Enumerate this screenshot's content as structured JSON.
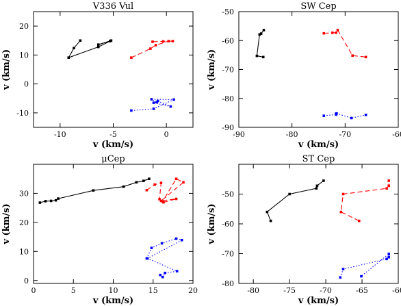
{
  "chart_data": [
    {
      "type": "scatter",
      "title": "V336 Vul",
      "xlabel": "v (km/s)",
      "ylabel": "v (km/s)",
      "xlim": [
        -12.5,
        2.5
      ],
      "ylim": [
        -15,
        25
      ],
      "xticks": [
        -10,
        -5,
        0
      ],
      "yticks": [
        -10,
        0,
        10,
        20
      ],
      "grid": false,
      "series": [
        {
          "color": "#000000",
          "dash": "solid",
          "x": [
            -8.1,
            -8.7,
            -9.2,
            -6.4,
            -5.3,
            -5.2,
            -6.4
          ],
          "y": [
            15.0,
            12.4,
            9.1,
            12.8,
            14.8,
            15.0,
            13.6
          ]
        },
        {
          "color": "#ff0000",
          "dash": "dashed",
          "x": [
            -3.3,
            -1.5,
            -1.0,
            0.2,
            0.6,
            -0.3,
            -1.3
          ],
          "y": [
            9.1,
            12.2,
            13.4,
            14.8,
            14.8,
            14.7,
            14.6
          ]
        },
        {
          "color": "#0000ff",
          "dash": "dotted",
          "x": [
            -3.3,
            -1.2,
            0.7,
            -1.4,
            -0.9,
            -1.2,
            0.4,
            -0.8
          ],
          "y": [
            -9.2,
            -8.6,
            -5.4,
            -5.3,
            -6.3,
            -6.5,
            -7.8,
            -5.9
          ]
        }
      ]
    },
    {
      "type": "scatter",
      "title": "SW Cep",
      "xlabel": "v (km/s)",
      "ylabel": "v (km/s)",
      "xlim": [
        -90,
        -60
      ],
      "ylim": [
        -90,
        -50
      ],
      "xticks": [
        -90,
        -80,
        -70,
        -60
      ],
      "yticks": [
        -90,
        -80,
        -70,
        -60,
        -50
      ],
      "grid": false,
      "series": [
        {
          "color": "#000000",
          "dash": "solid",
          "x": [
            -85.3,
            -85.8,
            -86.1,
            -86.6,
            -85.4
          ],
          "y": [
            -56.4,
            -57.6,
            -57.9,
            -65.3,
            -65.7
          ]
        },
        {
          "color": "#ff0000",
          "dash": "dashed",
          "x": [
            -74.0,
            -72.4,
            -71.7,
            -71.4,
            -68.6,
            -66.1
          ],
          "y": [
            -57.5,
            -57.3,
            -57.3,
            -56.4,
            -65.2,
            -65.7
          ]
        },
        {
          "color": "#0000ff",
          "dash": "dotted",
          "x": [
            -74.0,
            -71.7,
            -71.7,
            -71.6,
            -68.8,
            -66.1
          ],
          "y": [
            -86.0,
            -85.6,
            -85.3,
            -85.2,
            -86.8,
            -85.7
          ]
        }
      ]
    },
    {
      "type": "scatter",
      "title": "μCep",
      "xlabel": "v (km/s)",
      "ylabel": "v (km/s)",
      "xlim": [
        0,
        20
      ],
      "ylim": [
        -1,
        40
      ],
      "xticks": [
        0,
        5,
        10,
        15,
        20
      ],
      "yticks": [
        0,
        10,
        20,
        30
      ],
      "grid": false,
      "series": [
        {
          "color": "#000000",
          "dash": "solid",
          "x": [
            0.8,
            1.5,
            2.2,
            2.8,
            3.1,
            7.5,
            11.3,
            12.9,
            13.8,
            14.5
          ],
          "y": [
            26.8,
            27.3,
            27.4,
            27.6,
            28.2,
            31.0,
            32.3,
            33.8,
            34.3,
            35.0
          ]
        },
        {
          "color": "#ff0000",
          "dash": "dashed",
          "x": [
            14.2,
            15.2,
            16.0,
            15.8,
            16.3,
            17.9,
            16.0,
            18.8,
            17.9,
            16.2
          ],
          "y": [
            31.1,
            33.0,
            33.6,
            28.0,
            26.9,
            28.1,
            27.4,
            33.8,
            35.0,
            27.2
          ]
        },
        {
          "color": "#0000ff",
          "dash": "dotted",
          "x": [
            14.2,
            14.8,
            16.1,
            17.9,
            18.6,
            14.3,
            18.0,
            16.5,
            16.2,
            15.9
          ],
          "y": [
            7.6,
            11.2,
            12.8,
            14.4,
            13.9,
            7.6,
            3.2,
            2.6,
            1.2,
            1.9
          ]
        }
      ]
    },
    {
      "type": "scatter",
      "title": "ST Cep",
      "xlabel": "v (km/s)",
      "ylabel": "v (km/s)",
      "xlim": [
        -82,
        -60
      ],
      "ylim": [
        -80,
        -40
      ],
      "xticks": [
        -80,
        -75,
        -70,
        -65,
        -60
      ],
      "yticks": [
        -80,
        -70,
        -60,
        -50
      ],
      "grid": false,
      "series": [
        {
          "color": "#000000",
          "dash": "solid",
          "x": [
            -77.6,
            -78.1,
            -75.0,
            -71.3,
            -71.2,
            -70.3
          ],
          "y": [
            -59.0,
            -56.0,
            -50.0,
            -48.1,
            -47.2,
            -45.5
          ]
        },
        {
          "color": "#ff0000",
          "dash": "dashed",
          "x": [
            -65.4,
            -67.9,
            -67.6,
            -61.6,
            -61.3,
            -61.3
          ],
          "y": [
            -59.0,
            -56.0,
            -50.0,
            -48.1,
            -47.2,
            -45.5
          ]
        },
        {
          "color": "#0000ff",
          "dash": "dotted",
          "x": [
            -68.0,
            -67.6,
            -61.6,
            -61.3,
            -61.3,
            -65.1
          ],
          "y": [
            -78.0,
            -75.2,
            -71.8,
            -71.2,
            -70.1,
            -77.6
          ]
        }
      ]
    }
  ]
}
